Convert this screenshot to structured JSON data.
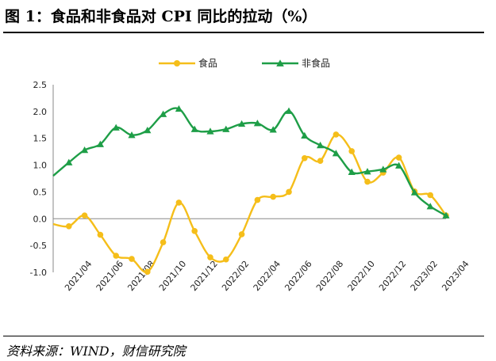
{
  "header": {
    "title": "图 1：食品和非食品对 CPI 同比的拉动（%）"
  },
  "footer": {
    "source": "资料来源：WIND，财信研究院"
  },
  "chart_data": {
    "type": "line",
    "title": "",
    "xlabel": "",
    "ylabel": "",
    "ylim": [
      -1.0,
      2.5
    ],
    "yticks": [
      "2.5",
      "2.0",
      "1.5",
      "1.0",
      "0.5",
      "0.0",
      "-0.5",
      "-1.0"
    ],
    "negative_tick_color": "#c00000",
    "legend_position": "top-center",
    "x": [
      "2021/03",
      "2021/04",
      "2021/05",
      "2021/06",
      "2021/07",
      "2021/08",
      "2021/09",
      "2021/10",
      "2021/11",
      "2021/12",
      "2022/01",
      "2022/02",
      "2022/03",
      "2022/04",
      "2022/05",
      "2022/06",
      "2022/07",
      "2022/08",
      "2022/09",
      "2022/10",
      "2022/11",
      "2022/12",
      "2023/01",
      "2023/02",
      "2023/03",
      "2023/04"
    ],
    "xtick_labels": [
      "2021/04",
      "2021/06",
      "2021/08",
      "2021/10",
      "2021/12",
      "2022/02",
      "2022/04",
      "2022/06",
      "2022/08",
      "2022/10",
      "2022/12",
      "2023/02",
      "2023/04"
    ],
    "series": [
      {
        "name": "食品",
        "color": "#f5be1a",
        "marker": "circle",
        "values": [
          -0.1,
          -0.14,
          0.06,
          -0.3,
          -0.69,
          -0.75,
          -0.99,
          -0.44,
          0.3,
          -0.23,
          -0.72,
          -0.76,
          -0.29,
          0.35,
          0.41,
          0.5,
          1.13,
          1.08,
          1.57,
          1.26,
          0.69,
          0.86,
          1.14,
          0.51,
          0.44,
          0.06
        ]
      },
      {
        "name": "非食品",
        "color": "#1e9e47",
        "marker": "triangle",
        "values": [
          0.8,
          1.05,
          1.28,
          1.39,
          1.7,
          1.56,
          1.65,
          1.95,
          2.05,
          1.67,
          1.63,
          1.67,
          1.77,
          1.78,
          1.66,
          2.01,
          1.55,
          1.37,
          1.22,
          0.87,
          0.88,
          0.92,
          0.99,
          0.49,
          0.23,
          0.06
        ]
      }
    ]
  }
}
